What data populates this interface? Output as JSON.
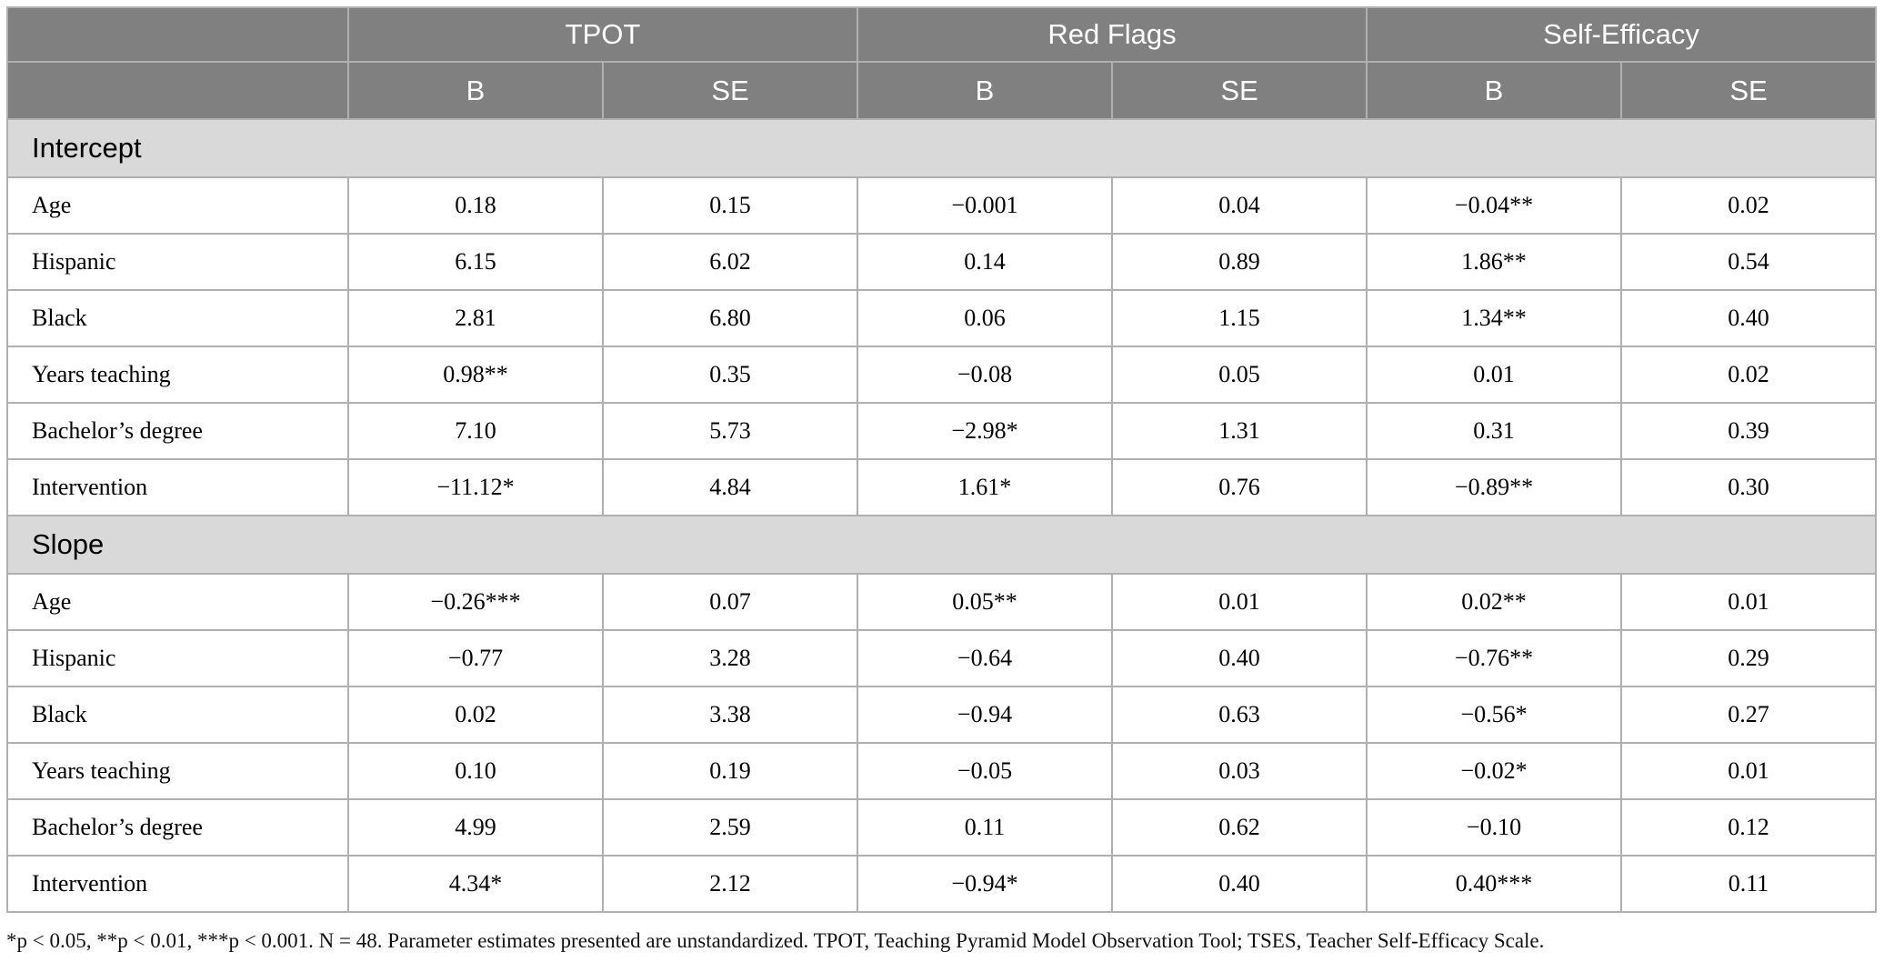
{
  "table": {
    "groups": [
      "TPOT",
      "Red Flags",
      "Self-Efficacy"
    ],
    "subheaders": [
      "B",
      "SE",
      "B",
      "SE",
      "B",
      "SE"
    ],
    "sections": [
      {
        "title": "Intercept",
        "rows": [
          {
            "label": "Age",
            "cells": [
              "0.18",
              "0.15",
              "−0.001",
              "0.04",
              "−0.04**",
              "0.02"
            ]
          },
          {
            "label": "Hispanic",
            "cells": [
              "6.15",
              "6.02",
              "0.14",
              "0.89",
              "1.86**",
              "0.54"
            ]
          },
          {
            "label": "Black",
            "cells": [
              "2.81",
              "6.80",
              "0.06",
              "1.15",
              "1.34**",
              "0.40"
            ]
          },
          {
            "label": "Years teaching",
            "cells": [
              "0.98**",
              "0.35",
              "−0.08",
              "0.05",
              "0.01",
              "0.02"
            ]
          },
          {
            "label": "Bachelor’s degree",
            "cells": [
              "7.10",
              "5.73",
              "−2.98*",
              "1.31",
              "0.31",
              "0.39"
            ]
          },
          {
            "label": "Intervention",
            "cells": [
              "−11.12*",
              "4.84",
              "1.61*",
              "0.76",
              "−0.89**",
              "0.30"
            ]
          }
        ]
      },
      {
        "title": "Slope",
        "rows": [
          {
            "label": "Age",
            "cells": [
              "−0.26***",
              "0.07",
              "0.05**",
              "0.01",
              "0.02**",
              "0.01"
            ]
          },
          {
            "label": "Hispanic",
            "cells": [
              "−0.77",
              "3.28",
              "−0.64",
              "0.40",
              "−0.76**",
              "0.29"
            ]
          },
          {
            "label": "Black",
            "cells": [
              "0.02",
              "3.38",
              "−0.94",
              "0.63",
              "−0.56*",
              "0.27"
            ]
          },
          {
            "label": "Years teaching",
            "cells": [
              "0.10",
              "0.19",
              "−0.05",
              "0.03",
              "−0.02*",
              "0.01"
            ]
          },
          {
            "label": "Bachelor’s degree",
            "cells": [
              "4.99",
              "2.59",
              "0.11",
              "0.62",
              "−0.10",
              "0.12"
            ]
          },
          {
            "label": "Intervention",
            "cells": [
              "4.34*",
              "2.12",
              "−0.94*",
              "0.40",
              "0.40***",
              "0.11"
            ]
          }
        ]
      }
    ]
  },
  "footnote": "*p < 0.05, **p < 0.01, ***p < 0.001. N = 48. Parameter estimates presented are unstandardized. TPOT, Teaching Pyramid Model Observation Tool; TSES, Teacher Self-Efficacy Scale."
}
